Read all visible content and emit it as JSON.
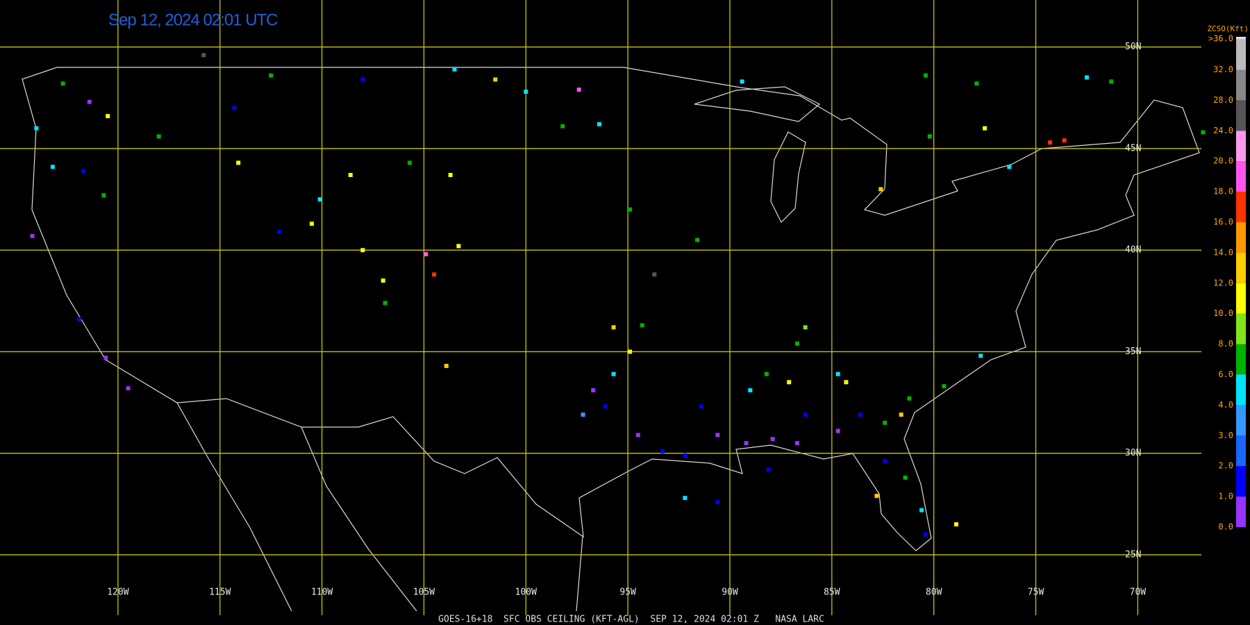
{
  "title": "Sep 12, 2024 02:01 UTC",
  "footer": "GOES-16+18  SFC OBS CEILING (KFT-AGL)  SEP 12, 2024 02:01 Z   NASA LARC",
  "grid": {
    "lons": [
      {
        "value": -120,
        "label": "120W"
      },
      {
        "value": -115,
        "label": "115W"
      },
      {
        "value": -110,
        "label": "110W"
      },
      {
        "value": -105,
        "label": "105W"
      },
      {
        "value": -100,
        "label": "100W"
      },
      {
        "value": -95,
        "label": "95W"
      },
      {
        "value": -90,
        "label": "90W"
      },
      {
        "value": -85,
        "label": "85W"
      },
      {
        "value": -80,
        "label": "80W"
      },
      {
        "value": -75,
        "label": "75W"
      },
      {
        "value": -70,
        "label": "70W"
      }
    ],
    "lats": [
      {
        "value": 50,
        "label": "50N"
      },
      {
        "value": 45,
        "label": "45N"
      },
      {
        "value": 40,
        "label": "40N"
      },
      {
        "value": 35,
        "label": "35N"
      },
      {
        "value": 30,
        "label": "30N"
      },
      {
        "value": 25,
        "label": "25N"
      }
    ]
  },
  "legend": {
    "title": "ZCSO(Kft)",
    "levels": [
      {
        "value": 0,
        "label": "0.0"
      },
      {
        "value": 1,
        "label": "1.0"
      },
      {
        "value": 2,
        "label": "2.0"
      },
      {
        "value": 3,
        "label": "3.0"
      },
      {
        "value": 4,
        "label": "4.0"
      },
      {
        "value": 6,
        "label": "6.0"
      },
      {
        "value": 8,
        "label": "8.0"
      },
      {
        "value": 10,
        "label": "10.0"
      },
      {
        "value": 12,
        "label": "12.0"
      },
      {
        "value": 14,
        "label": "14.0"
      },
      {
        "value": 16,
        "label": "16.0"
      },
      {
        "value": 18,
        "label": "18.0"
      },
      {
        "value": 20,
        "label": "20.0"
      },
      {
        "value": 24,
        "label": "24.0"
      },
      {
        "value": 28,
        "label": "28.0"
      },
      {
        "value": 32,
        "label": "32.0"
      },
      {
        "value": 36,
        "label": ">36.0"
      }
    ],
    "colors": [
      "#9933ff",
      "#0000ff",
      "#1a66ff",
      "#3399ff",
      "#00e5ff",
      "#00b300",
      "#80e619",
      "#ffff00",
      "#ffcc00",
      "#ff9900",
      "#ff3300",
      "#ff55ee",
      "#ff99ee",
      "#555555",
      "#888888",
      "#bbbbbb",
      "#e0e0e0"
    ]
  },
  "stations": [
    {
      "lon": -96.7,
      "lat": 33.1,
      "ceiling": 0.5
    },
    {
      "lon": -96.1,
      "lat": 32.3,
      "ceiling": 1.5
    },
    {
      "lon": -97.2,
      "lat": 31.9,
      "ceiling": 3.5
    },
    {
      "lon": -95.7,
      "lat": 33.9,
      "ceiling": 5
    },
    {
      "lon": -94.5,
      "lat": 30.9,
      "ceiling": 0.5
    },
    {
      "lon": -93.3,
      "lat": 30.1,
      "ceiling": 1.5
    },
    {
      "lon": -92.2,
      "lat": 29.9,
      "ceiling": 1.5
    },
    {
      "lon": -91.4,
      "lat": 32.3,
      "ceiling": 1.5
    },
    {
      "lon": -90.6,
      "lat": 30.9,
      "ceiling": 0.5
    },
    {
      "lon": -89.2,
      "lat": 30.5,
      "ceiling": 0.5
    },
    {
      "lon": -87.9,
      "lat": 30.7,
      "ceiling": 0.5
    },
    {
      "lon": -86.7,
      "lat": 30.5,
      "ceiling": 0.5
    },
    {
      "lon": -86.3,
      "lat": 31.9,
      "ceiling": 1.5
    },
    {
      "lon": -84.7,
      "lat": 31.1,
      "ceiling": 0.5
    },
    {
      "lon": -83.6,
      "lat": 31.9,
      "ceiling": 1.5
    },
    {
      "lon": -82.4,
      "lat": 31.5,
      "ceiling": 7
    },
    {
      "lon": -81.6,
      "lat": 31.9,
      "ceiling": 13
    },
    {
      "lon": -81.2,
      "lat": 32.7,
      "ceiling": 7
    },
    {
      "lon": -84.7,
      "lat": 33.9,
      "ceiling": 5
    },
    {
      "lon": -84.3,
      "lat": 33.5,
      "ceiling": 11
    },
    {
      "lon": -87.1,
      "lat": 33.5,
      "ceiling": 11
    },
    {
      "lon": -89.0,
      "lat": 33.1,
      "ceiling": 5
    },
    {
      "lon": -88.2,
      "lat": 33.9,
      "ceiling": 7
    },
    {
      "lon": -86.7,
      "lat": 35.4,
      "ceiling": 7
    },
    {
      "lon": -86.3,
      "lat": 36.2,
      "ceiling": 9
    },
    {
      "lon": -82.4,
      "lat": 29.6,
      "ceiling": 1.5
    },
    {
      "lon": -81.4,
      "lat": 28.8,
      "ceiling": 7
    },
    {
      "lon": -80.6,
      "lat": 27.2,
      "ceiling": 5
    },
    {
      "lon": -80.4,
      "lat": 26.0,
      "ceiling": 1.5
    },
    {
      "lon": -82.8,
      "lat": 27.9,
      "ceiling": 13
    },
    {
      "lon": -79.5,
      "lat": 33.3,
      "ceiling": 7
    },
    {
      "lon": -77.7,
      "lat": 34.8,
      "ceiling": 5
    },
    {
      "lon": -92.2,
      "lat": 27.8,
      "ceiling": 5
    },
    {
      "lon": -90.6,
      "lat": 27.6,
      "ceiling": 1.5
    },
    {
      "lon": -88.1,
      "lat": 29.2,
      "ceiling": 1.5
    },
    {
      "lon": -95.7,
      "lat": 36.2,
      "ceiling": 13
    },
    {
      "lon": -94.3,
      "lat": 36.3,
      "ceiling": 7
    },
    {
      "lon": -94.9,
      "lat": 35.0,
      "ceiling": 11
    },
    {
      "lon": -93.7,
      "lat": 38.8,
      "ceiling": 26
    },
    {
      "lon": -91.6,
      "lat": 40.5,
      "ceiling": 7
    },
    {
      "lon": -94.9,
      "lat": 42.0,
      "ceiling": 7
    },
    {
      "lon": -103.9,
      "lat": 34.3,
      "ceiling": 13
    },
    {
      "lon": -104.9,
      "lat": 39.8,
      "ceiling": 19
    },
    {
      "lon": -104.5,
      "lat": 38.8,
      "ceiling": 17
    },
    {
      "lon": -107.0,
      "lat": 38.5,
      "ceiling": 11
    },
    {
      "lon": -106.9,
      "lat": 37.4,
      "ceiling": 7
    },
    {
      "lon": -108.0,
      "lat": 40.0,
      "ceiling": 11
    },
    {
      "lon": -103.3,
      "lat": 40.2,
      "ceiling": 11
    },
    {
      "lon": -103.7,
      "lat": 43.7,
      "ceiling": 11
    },
    {
      "lon": -108.6,
      "lat": 43.7,
      "ceiling": 11
    },
    {
      "lon": -105.7,
      "lat": 44.3,
      "ceiling": 7
    },
    {
      "lon": -110.1,
      "lat": 42.5,
      "ceiling": 5
    },
    {
      "lon": -110.5,
      "lat": 41.3,
      "ceiling": 11
    },
    {
      "lon": -114.1,
      "lat": 44.3,
      "ceiling": 11
    },
    {
      "lon": -114.3,
      "lat": 47.0,
      "ceiling": 1.5
    },
    {
      "lon": -112.5,
      "lat": 48.6,
      "ceiling": 7
    },
    {
      "lon": -108.0,
      "lat": 48.4,
      "ceiling": 1.5
    },
    {
      "lon": -103.5,
      "lat": 48.9,
      "ceiling": 5
    },
    {
      "lon": -101.5,
      "lat": 48.4,
      "ceiling": 13
    },
    {
      "lon": -98.2,
      "lat": 46.1,
      "ceiling": 7
    },
    {
      "lon": -96.4,
      "lat": 46.2,
      "ceiling": 5
    },
    {
      "lon": -97.4,
      "lat": 47.9,
      "ceiling": 19
    },
    {
      "lon": -100.0,
      "lat": 47.8,
      "ceiling": 5
    },
    {
      "lon": -118.0,
      "lat": 45.6,
      "ceiling": 7
    },
    {
      "lon": -120.7,
      "lat": 42.7,
      "ceiling": 7
    },
    {
      "lon": -121.7,
      "lat": 43.9,
      "ceiling": 1.5
    },
    {
      "lon": -123.2,
      "lat": 44.1,
      "ceiling": 5
    },
    {
      "lon": -124.0,
      "lat": 46.0,
      "ceiling": 5
    },
    {
      "lon": -122.7,
      "lat": 48.2,
      "ceiling": 7
    },
    {
      "lon": -121.4,
      "lat": 47.3,
      "ceiling": 0.5
    },
    {
      "lon": -120.5,
      "lat": 46.6,
      "ceiling": 11
    },
    {
      "lon": -124.2,
      "lat": 40.7,
      "ceiling": 0.5
    },
    {
      "lon": -121.9,
      "lat": 36.6,
      "ceiling": 1.5
    },
    {
      "lon": -120.6,
      "lat": 34.7,
      "ceiling": 0.5
    },
    {
      "lon": -119.5,
      "lat": 33.2,
      "ceiling": 0.5
    },
    {
      "lon": -112.1,
      "lat": 40.9,
      "ceiling": 1.5
    },
    {
      "lon": -115.8,
      "lat": 49.6,
      "ceiling": 26
    },
    {
      "lon": -80.4,
      "lat": 48.6,
      "ceiling": 7
    },
    {
      "lon": -77.9,
      "lat": 48.2,
      "ceiling": 7
    },
    {
      "lon": -74.3,
      "lat": 45.3,
      "ceiling": 17
    },
    {
      "lon": -76.3,
      "lat": 44.1,
      "ceiling": 5
    },
    {
      "lon": -82.6,
      "lat": 43.0,
      "ceiling": 13
    },
    {
      "lon": -72.5,
      "lat": 48.5,
      "ceiling": 5
    },
    {
      "lon": -71.3,
      "lat": 48.3,
      "ceiling": 7
    },
    {
      "lon": -66.8,
      "lat": 45.8,
      "ceiling": 7
    },
    {
      "lon": -89.4,
      "lat": 48.3,
      "ceiling": 5
    },
    {
      "lon": -80.2,
      "lat": 45.6,
      "ceiling": 7
    },
    {
      "lon": -77.5,
      "lat": 46.0,
      "ceiling": 11
    },
    {
      "lon": -73.6,
      "lat": 45.4,
      "ceiling": 17
    },
    {
      "lon": -78.9,
      "lat": 26.5,
      "ceiling": 11
    }
  ]
}
